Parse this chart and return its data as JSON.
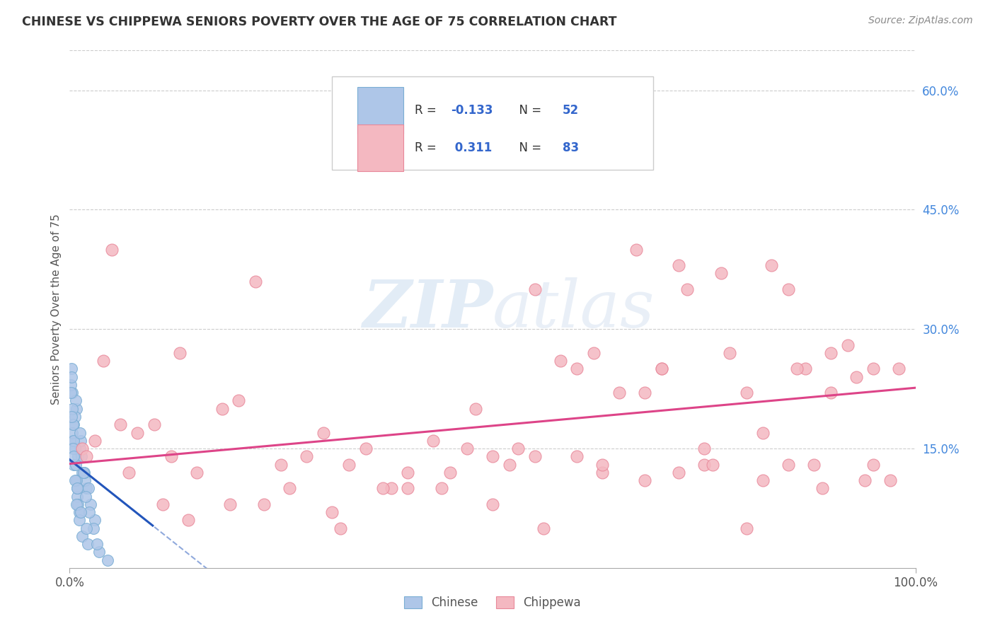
{
  "title": "CHINESE VS CHIPPEWA SENIORS POVERTY OVER THE AGE OF 75 CORRELATION CHART",
  "source": "Source: ZipAtlas.com",
  "ylabel": "Seniors Poverty Over the Age of 75",
  "xlabel": "",
  "xlim": [
    0,
    100
  ],
  "ylim": [
    0,
    65
  ],
  "yticks": [
    0,
    15,
    30,
    45,
    60
  ],
  "xticks": [
    0,
    100
  ],
  "xtick_labels": [
    "0.0%",
    "100.0%"
  ],
  "ytick_labels": [
    "",
    "15.0%",
    "30.0%",
    "45.0%",
    "60.0%"
  ],
  "grid_color": "#cccccc",
  "background_color": "#ffffff",
  "chinese_color": "#aec6e8",
  "chippewa_color": "#f4b8c1",
  "chinese_edge_color": "#7aaed4",
  "chippewa_edge_color": "#e8889a",
  "chinese_line_color": "#2255bb",
  "chippewa_line_color": "#dd4488",
  "chinese_R": -0.133,
  "chinese_N": 52,
  "chippewa_R": 0.311,
  "chippewa_N": 83,
  "watermark_zip": "ZIP",
  "watermark_atlas": "atlas",
  "chinese_x": [
    0.5,
    0.3,
    1.2,
    0.8,
    1.5,
    2.0,
    0.2,
    0.4,
    0.6,
    1.0,
    1.8,
    2.5,
    0.1,
    0.3,
    0.5,
    0.7,
    0.9,
    1.1,
    1.3,
    1.7,
    2.2,
    3.0,
    0.2,
    0.4,
    0.6,
    0.8,
    1.0,
    1.4,
    1.9,
    2.8,
    0.3,
    0.5,
    0.7,
    0.9,
    1.2,
    1.6,
    2.3,
    0.1,
    0.4,
    0.6,
    0.8,
    1.1,
    1.5,
    2.1,
    3.5,
    0.2,
    0.5,
    0.9,
    1.3,
    2.0,
    3.2,
    4.5
  ],
  "chinese_y": [
    18,
    22,
    15,
    20,
    12,
    10,
    25,
    16,
    19,
    14,
    11,
    8,
    23,
    17,
    13,
    21,
    9,
    7,
    16,
    12,
    10,
    6,
    24,
    18,
    15,
    11,
    8,
    14,
    9,
    5,
    20,
    16,
    13,
    10,
    17,
    12,
    7,
    22,
    15,
    11,
    8,
    6,
    4,
    3,
    2,
    19,
    14,
    10,
    7,
    5,
    3,
    1
  ],
  "chippewa_x": [
    1.5,
    8.0,
    13.0,
    48.0,
    55.0,
    60.0,
    65.0,
    70.0,
    80.0,
    85.0,
    90.0,
    95.0,
    3.0,
    10.0,
    18.0,
    25.0,
    33.0,
    40.0,
    50.0,
    58.0,
    68.0,
    75.0,
    82.0,
    88.0,
    93.0,
    98.0,
    5.0,
    12.0,
    20.0,
    28.0,
    35.0,
    43.0,
    52.0,
    62.0,
    72.0,
    78.0,
    83.0,
    87.0,
    92.0,
    97.0,
    2.0,
    7.0,
    15.0,
    22.0,
    30.0,
    38.0,
    45.0,
    53.0,
    60.0,
    67.0,
    73.0,
    77.0,
    82.0,
    86.0,
    90.0,
    94.0,
    4.0,
    11.0,
    19.0,
    26.0,
    32.0,
    40.0,
    47.0,
    55.0,
    63.0,
    70.0,
    75.0,
    80.0,
    85.0,
    89.0,
    95.0,
    6.0,
    14.0,
    23.0,
    31.0,
    37.0,
    44.0,
    50.0,
    56.0,
    63.0,
    68.0,
    72.0,
    76.0
  ],
  "chippewa_y": [
    15,
    17,
    27,
    20,
    35,
    25,
    22,
    25,
    22,
    35,
    27,
    25,
    16,
    18,
    20,
    13,
    13,
    10,
    14,
    26,
    22,
    15,
    17,
    13,
    24,
    25,
    40,
    14,
    21,
    14,
    15,
    16,
    13,
    27,
    12,
    27,
    38,
    25,
    28,
    11,
    14,
    12,
    12,
    36,
    17,
    10,
    12,
    15,
    14,
    40,
    35,
    37,
    11,
    25,
    22,
    11,
    26,
    8,
    8,
    10,
    5,
    12,
    15,
    14,
    12,
    25,
    13,
    5,
    13,
    10,
    13,
    18,
    6,
    8,
    7,
    10,
    10,
    8,
    5,
    13,
    11,
    38,
    13
  ]
}
